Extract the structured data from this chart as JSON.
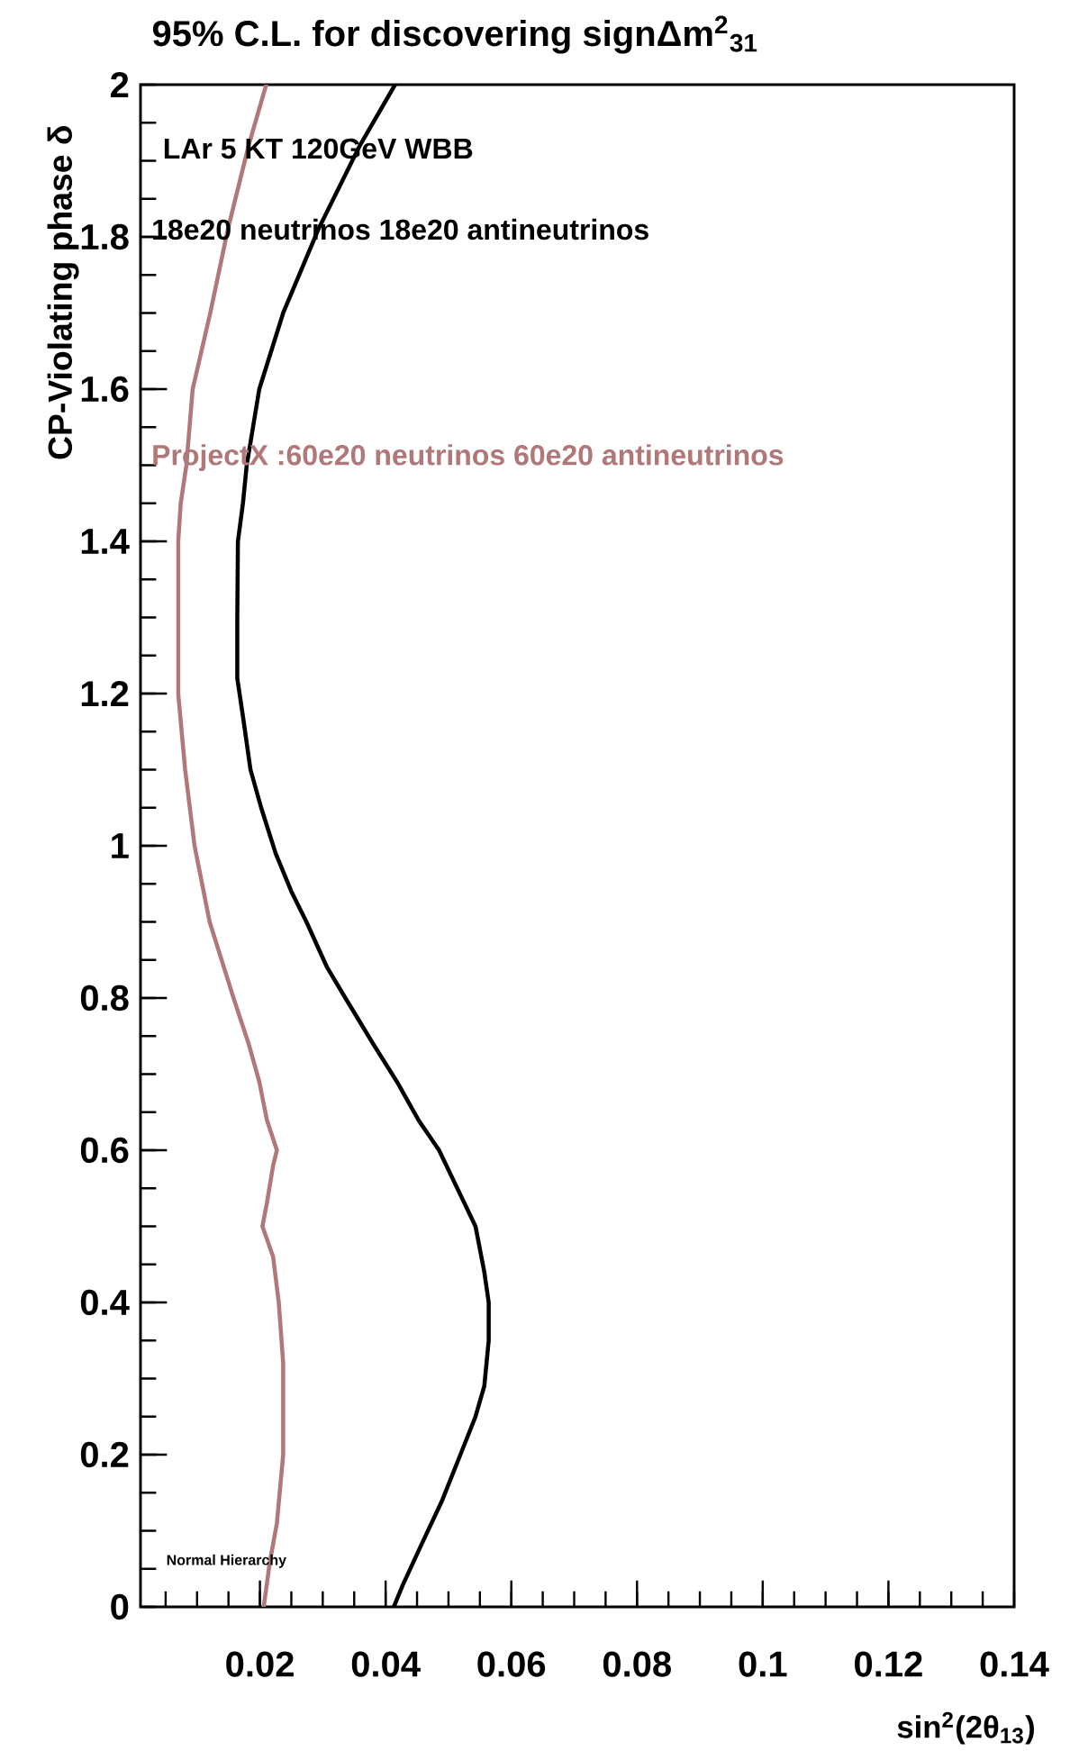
{
  "chart_data": {
    "type": "line",
    "title": "95% C.L. for discovering signΔm$^{2}$$_{31}$",
    "xlabel": "sin$^{2}$(2θ$_{13}$)",
    "ylabel": "CP-Violating phase δ",
    "annotations": [
      "LAr 5 KT 120GeV WBB",
      "18e20 neutrinos 18e20 antineutrinos",
      "ProjectX :60e20 neutrinos 60e20 antineutrinos",
      "Normal Hierarchy"
    ],
    "xlim": [
      0.001,
      0.14
    ],
    "ylim": [
      0,
      2
    ],
    "xticks": [
      {
        "value": 0.005,
        "label": null
      },
      {
        "value": 0.01,
        "label": null
      },
      {
        "value": 0.015,
        "label": null
      },
      0.02,
      {
        "value": 0.025,
        "label": null
      },
      {
        "value": 0.03,
        "label": null
      },
      {
        "value": 0.035,
        "label": null
      },
      0.04,
      {
        "value": 0.045,
        "label": null
      },
      {
        "value": 0.05,
        "label": null
      },
      {
        "value": 0.055,
        "label": null
      },
      0.06,
      {
        "value": 0.065,
        "label": null
      },
      {
        "value": 0.07,
        "label": null
      },
      {
        "value": 0.075,
        "label": null
      },
      0.08,
      {
        "value": 0.085,
        "label": null
      },
      {
        "value": 0.09,
        "label": null
      },
      {
        "value": 0.095,
        "label": null
      },
      0.1,
      {
        "value": 0.105,
        "label": null
      },
      {
        "value": 0.11,
        "label": null
      },
      {
        "value": 0.115,
        "label": null
      },
      0.12,
      {
        "value": 0.125,
        "label": null
      },
      {
        "value": 0.13,
        "label": null
      },
      {
        "value": 0.135,
        "label": null
      },
      0.14
    ],
    "yticks": [
      0,
      {
        "value": 0.05,
        "label": null
      },
      {
        "value": 0.1,
        "label": null
      },
      {
        "value": 0.15,
        "label": null
      },
      0.2,
      {
        "value": 0.25,
        "label": null
      },
      {
        "value": 0.3,
        "label": null
      },
      {
        "value": 0.35,
        "label": null
      },
      0.4,
      {
        "value": 0.45,
        "label": null
      },
      {
        "value": 0.5,
        "label": null
      },
      {
        "value": 0.55,
        "label": null
      },
      0.6,
      {
        "value": 0.65,
        "label": null
      },
      {
        "value": 0.7,
        "label": null
      },
      {
        "value": 0.75,
        "label": null
      },
      0.8,
      {
        "value": 0.85,
        "label": null
      },
      {
        "value": 0.9,
        "label": null
      },
      {
        "value": 0.95,
        "label": null
      },
      1,
      {
        "value": 1.05,
        "label": null
      },
      {
        "value": 1.1,
        "label": null
      },
      {
        "value": 1.15,
        "label": null
      },
      1.2,
      {
        "value": 1.25,
        "label": null
      },
      {
        "value": 1.3,
        "label": null
      },
      {
        "value": 1.35,
        "label": null
      },
      1.4,
      {
        "value": 1.45,
        "label": null
      },
      {
        "value": 1.5,
        "label": null
      },
      {
        "value": 1.55,
        "label": null
      },
      1.6,
      {
        "value": 1.65,
        "label": null
      },
      {
        "value": 1.7,
        "label": null
      },
      {
        "value": 1.75,
        "label": null
      },
      1.8,
      {
        "value": 1.85,
        "label": null
      },
      {
        "value": 1.9,
        "label": null
      },
      {
        "value": 1.95,
        "label": null
      },
      2
    ],
    "series": [
      {
        "color": "#000000",
        "x": [
          0.0413,
          0.0428,
          0.0456,
          0.049,
          0.0519,
          0.0543,
          0.0557,
          0.0564,
          0.0564,
          0.0557,
          0.0543,
          0.0514,
          0.0485,
          0.0452,
          0.0418,
          0.038,
          0.0336,
          0.0307,
          0.0274,
          0.025,
          0.0225,
          0.0202,
          0.0185,
          0.0173,
          0.0164,
          0.0164,
          0.0165,
          0.0173,
          0.0179,
          0.0199,
          0.0237,
          0.0293,
          0.0359,
          0.0415
        ],
        "values": [
          0,
          0.03,
          0.08,
          0.14,
          0.2,
          0.25,
          0.29,
          0.35,
          0.4,
          0.44,
          0.5,
          0.55,
          0.6,
          0.64,
          0.69,
          0.74,
          0.8,
          0.84,
          0.9,
          0.94,
          0.99,
          1.05,
          1.1,
          1.17,
          1.22,
          1.3,
          1.4,
          1.45,
          1.5,
          1.6,
          1.7,
          1.81,
          1.92,
          2
        ]
      },
      {
        "color": "#b07878",
        "x": [
          0.0206,
          0.0216,
          0.0227,
          0.0237,
          0.0237,
          0.023,
          0.0221,
          0.0204,
          0.0211,
          0.0221,
          0.0227,
          0.0211,
          0.0199,
          0.0182,
          0.0158,
          0.012,
          0.0096,
          0.0081,
          0.007,
          0.007,
          0.0074,
          0.0083,
          0.0093,
          0.0121,
          0.0149,
          0.0182,
          0.021
        ],
        "values": [
          0,
          0.06,
          0.11,
          0.2,
          0.32,
          0.4,
          0.46,
          0.5,
          0.53,
          0.58,
          0.6,
          0.64,
          0.69,
          0.74,
          0.8,
          0.9,
          1,
          1.1,
          1.2,
          1.4,
          1.45,
          1.5,
          1.6,
          1.7,
          1.81,
          1.92,
          2
        ]
      }
    ]
  }
}
